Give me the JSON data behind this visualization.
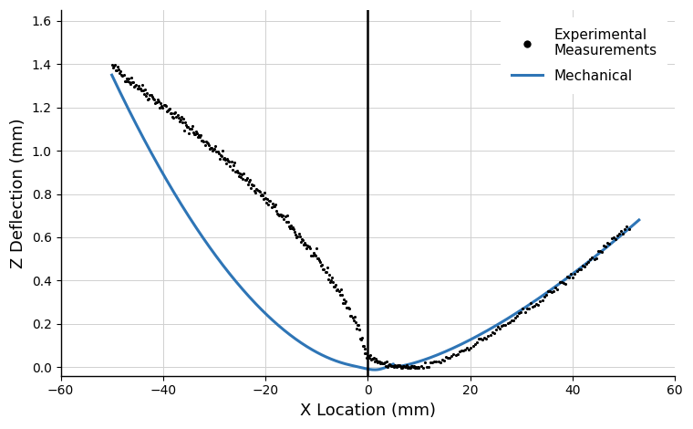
{
  "xlabel": "X Location (mm)",
  "ylabel": "Z Deflection (mm)",
  "xlim": [
    -60,
    60
  ],
  "ylim": [
    -0.04,
    1.65
  ],
  "yticks": [
    0,
    0.2,
    0.4,
    0.6,
    0.8,
    1.0,
    1.2,
    1.4,
    1.6
  ],
  "xticks": [
    -60,
    -40,
    -20,
    0,
    20,
    40,
    60
  ],
  "blue_color": "#2E75B6",
  "dot_color": "#000000",
  "vline_x": 0,
  "legend_dot_label": "Experimental\nMeasurements",
  "legend_line_label": "Mechanical"
}
